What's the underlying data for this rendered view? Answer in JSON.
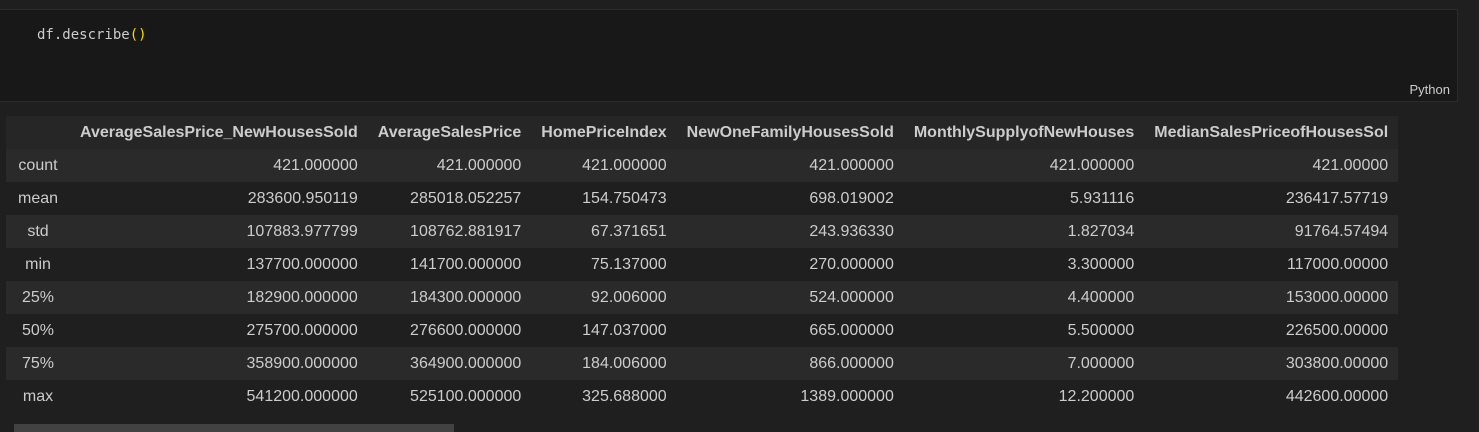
{
  "code_cell": {
    "code_prefix": "df.describe",
    "code_parens": "()",
    "language": "Python"
  },
  "table": {
    "columns": [
      "AverageSalesPrice_NewHousesSold",
      "AverageSalesPrice",
      "HomePriceIndex",
      "NewOneFamilyHousesSold",
      "MonthlySupplyofNewHouses",
      "MedianSalesPriceofHousesSol"
    ],
    "rows": [
      {
        "label": "count",
        "values": [
          "421.000000",
          "421.000000",
          "421.000000",
          "421.000000",
          "421.000000",
          "421.00000"
        ]
      },
      {
        "label": "mean",
        "values": [
          "283600.950119",
          "285018.052257",
          "154.750473",
          "698.019002",
          "5.931116",
          "236417.57719"
        ]
      },
      {
        "label": "std",
        "values": [
          "107883.977799",
          "108762.881917",
          "67.371651",
          "243.936330",
          "1.827034",
          "91764.57494"
        ]
      },
      {
        "label": "min",
        "values": [
          "137700.000000",
          "141700.000000",
          "75.137000",
          "270.000000",
          "3.300000",
          "117000.00000"
        ]
      },
      {
        "label": "25%",
        "values": [
          "182900.000000",
          "184300.000000",
          "92.006000",
          "524.000000",
          "4.400000",
          "153000.00000"
        ]
      },
      {
        "label": "50%",
        "values": [
          "275700.000000",
          "276600.000000",
          "147.037000",
          "665.000000",
          "5.500000",
          "226500.00000"
        ]
      },
      {
        "label": "75%",
        "values": [
          "358900.000000",
          "364900.000000",
          "184.006000",
          "866.000000",
          "7.000000",
          "303800.00000"
        ]
      },
      {
        "label": "max",
        "values": [
          "541200.000000",
          "525100.000000",
          "325.688000",
          "1389.000000",
          "12.200000",
          "442600.00000"
        ]
      }
    ]
  }
}
